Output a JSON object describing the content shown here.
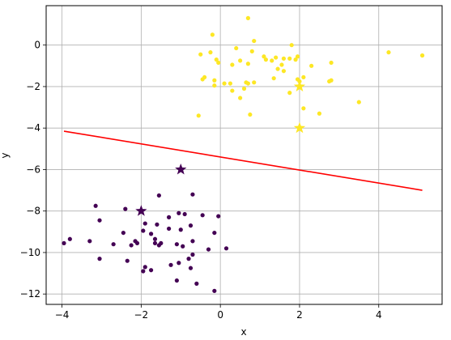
{
  "chart_data": {
    "type": "scatter",
    "xlabel": "x",
    "ylabel": "y",
    "xlim": [
      -4.4,
      5.6
    ],
    "ylim": [
      -12.5,
      1.9
    ],
    "x_ticks": [
      -4,
      -2,
      0,
      2,
      4
    ],
    "y_ticks": [
      0,
      -2,
      -4,
      -6,
      -8,
      -10,
      -12
    ],
    "x_tick_labels": [
      "−4",
      "−2",
      "0",
      "2",
      "4"
    ],
    "y_tick_labels": [
      "0",
      "−2",
      "−4",
      "−6",
      "−8",
      "−10",
      "−12"
    ],
    "grid": true,
    "legend": "none",
    "colors": {
      "class_a": "#FDE725",
      "class_b": "#440154",
      "line": "#FF0000"
    },
    "series": [
      {
        "class": "a",
        "color": "#FDE725",
        "points": [
          [
            0.7,
            1.3
          ],
          [
            -0.2,
            0.5
          ],
          [
            0.85,
            0.2
          ],
          [
            1.8,
            0.0
          ],
          [
            0.4,
            -0.15
          ],
          [
            -0.5,
            -0.45
          ],
          [
            -0.25,
            -0.35
          ],
          [
            0.8,
            -0.3
          ],
          [
            4.25,
            -0.35
          ],
          [
            5.1,
            -0.5
          ],
          [
            1.1,
            -0.55
          ],
          [
            1.4,
            -0.6
          ],
          [
            1.15,
            -0.7
          ],
          [
            1.3,
            -0.75
          ],
          [
            1.6,
            -0.65
          ],
          [
            1.75,
            -0.65
          ],
          [
            1.9,
            -0.7
          ],
          [
            1.95,
            -0.55
          ],
          [
            -0.1,
            -0.7
          ],
          [
            -0.05,
            -0.85
          ],
          [
            0.5,
            -0.75
          ],
          [
            0.7,
            -0.9
          ],
          [
            0.3,
            -0.95
          ],
          [
            1.55,
            -0.95
          ],
          [
            2.3,
            -1.0
          ],
          [
            2.8,
            -0.85
          ],
          [
            1.45,
            -1.15
          ],
          [
            1.6,
            -1.25
          ],
          [
            -0.4,
            -1.55
          ],
          [
            -0.45,
            -1.65
          ],
          [
            -0.15,
            -1.7
          ],
          [
            0.1,
            -1.85
          ],
          [
            0.25,
            -1.85
          ],
          [
            0.65,
            -1.8
          ],
          [
            0.7,
            -1.85
          ],
          [
            0.85,
            -1.8
          ],
          [
            -0.15,
            -1.95
          ],
          [
            1.35,
            -1.6
          ],
          [
            1.95,
            -1.65
          ],
          [
            2.0,
            -1.75
          ],
          [
            2.1,
            -1.55
          ],
          [
            2.75,
            -1.75
          ],
          [
            2.8,
            -1.7
          ],
          [
            0.3,
            -2.2
          ],
          [
            0.6,
            -2.1
          ],
          [
            0.5,
            -2.55
          ],
          [
            1.75,
            -2.3
          ],
          [
            2.5,
            -3.3
          ],
          [
            3.5,
            -2.75
          ],
          [
            2.1,
            -3.05
          ],
          [
            0.75,
            -3.35
          ],
          [
            -0.55,
            -3.4
          ]
        ],
        "stars": [
          [
            2.0,
            -2.0
          ],
          [
            2.0,
            -4.0
          ]
        ]
      },
      {
        "class": "b",
        "color": "#440154",
        "points": [
          [
            -0.7,
            -7.2
          ],
          [
            -1.55,
            -7.25
          ],
          [
            -3.15,
            -7.75
          ],
          [
            -2.4,
            -7.9
          ],
          [
            -0.05,
            -8.25
          ],
          [
            -0.45,
            -8.2
          ],
          [
            -1.3,
            -8.3
          ],
          [
            -0.9,
            -8.15
          ],
          [
            -1.05,
            -8.1
          ],
          [
            -3.05,
            -8.45
          ],
          [
            -1.9,
            -8.6
          ],
          [
            -1.6,
            -8.65
          ],
          [
            -0.75,
            -8.7
          ],
          [
            -1.3,
            -8.85
          ],
          [
            -1.95,
            -8.95
          ],
          [
            -0.15,
            -9.05
          ],
          [
            -2.45,
            -9.05
          ],
          [
            -1.75,
            -9.1
          ],
          [
            -3.8,
            -9.35
          ],
          [
            -1.65,
            -9.35
          ],
          [
            -3.3,
            -9.45
          ],
          [
            -2.15,
            -9.45
          ],
          [
            -1.5,
            -9.55
          ],
          [
            -0.7,
            -9.45
          ],
          [
            -2.1,
            -9.55
          ],
          [
            -1.65,
            -9.55
          ],
          [
            -1.55,
            -9.65
          ],
          [
            -3.95,
            -9.55
          ],
          [
            -2.7,
            -9.6
          ],
          [
            -2.25,
            -9.65
          ],
          [
            -1.1,
            -9.6
          ],
          [
            -0.95,
            -9.7
          ],
          [
            0.15,
            -9.8
          ],
          [
            -0.3,
            -9.85
          ],
          [
            -0.7,
            -10.1
          ],
          [
            -3.05,
            -10.3
          ],
          [
            -2.35,
            -10.4
          ],
          [
            -1.05,
            -10.5
          ],
          [
            -1.9,
            -10.7
          ],
          [
            -1.25,
            -10.6
          ],
          [
            -0.75,
            -10.75
          ],
          [
            -1.75,
            -10.85
          ],
          [
            -1.95,
            -10.9
          ],
          [
            -0.8,
            -10.3
          ],
          [
            -1.1,
            -11.35
          ],
          [
            -0.6,
            -11.5
          ],
          [
            -0.15,
            -11.85
          ],
          [
            -1.0,
            -8.9
          ]
        ],
        "stars": [
          [
            -1.0,
            -6.0
          ],
          [
            -2.0,
            -8.0
          ]
        ]
      }
    ],
    "line": {
      "x": [
        -3.95,
        5.1
      ],
      "y": [
        -4.15,
        -7.0
      ]
    }
  }
}
